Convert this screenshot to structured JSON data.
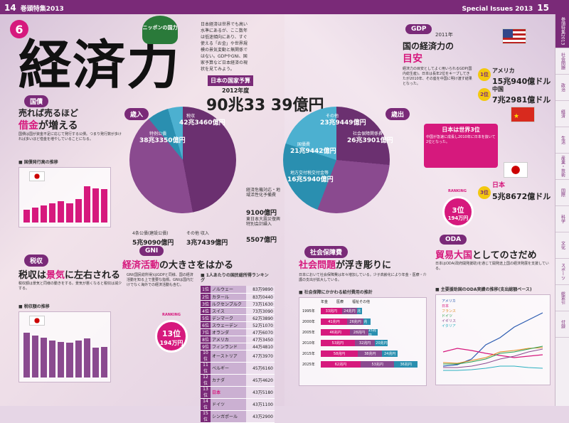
{
  "header": {
    "page_left": "14",
    "title_left": "巻頭特集2013",
    "title_right": "Special Issues 2013",
    "page_right": "15"
  },
  "title": {
    "number": "6",
    "main": "経済力",
    "tag": "ニッポンの国力"
  },
  "intro": "日本経済は世界でも高い水準にあるが、ここ数年は低迷傾向にあり、すぐ使える「お金」や世界規模の景気変動と無関係ではない。GDPやGNI、国家予算など日本経済の現状を見てみよう。",
  "budget": {
    "label": "日本の国家予算",
    "year": "2012年度",
    "total": "90兆33 39億円",
    "revenue": {
      "badge": "歳入",
      "tax_label": "税収",
      "tax": "42兆3460億円",
      "special_label": "特例公債",
      "special": "38兆3350億円",
      "construction_label": "4条公債(建設公債)",
      "construction": "5兆9090億円",
      "other_label": "その他 収入",
      "other": "3兆7439億円",
      "recovery_label": "経済危機対応・地域活性化予備費",
      "recovery": "9100億円",
      "east_label": "東日本大震災復興特別会計繰入",
      "east": "5507億円"
    },
    "expenditure": {
      "badge": "歳出",
      "other_label": "その他",
      "other": "23兆9449億円",
      "social_label": "社会保障関係費",
      "social": "26兆3901億円",
      "debt_label": "国債費",
      "debt": "21兆9442億円",
      "local_label": "地方交付税交付金等",
      "local": "16兆5940億円"
    }
  },
  "bonds": {
    "badge": "国債",
    "headline1": "売れば売るほど",
    "headline2": "借金",
    "headline3": "が増える",
    "chart_title": "■ 国債発行高の推移",
    "body": "国債は国が資金不足に応じて発行する公債。つまり発行数が多ければ多いほど借金を増やしていることになる。"
  },
  "tax": {
    "badge": "税収",
    "headline1": "税収は",
    "headline2": "景気",
    "headline3": "に左右される",
    "chart_title": "■ 税収額の推移",
    "body": "税収額は景気と同様の動きをする。景気が悪くなると税収は減少する。"
  },
  "gni": {
    "badge": "GNI",
    "headline1": "経済活動",
    "headline2": "の大きさをはかる",
    "body": "GNI(国民総所得)はGDPと同様、国の経済活動を知る上で重要な指標。GNIは国内だけでなく海外での経済活動も含む。",
    "rank_label": "RANKING",
    "rank": "13位",
    "value": "194万円",
    "table_title": "■ 1人あたりの国民総所得ランキング",
    "ranking": [
      [
        "1位",
        "ノルウェー",
        "83万9890"
      ],
      [
        "2位",
        "カタール",
        "83万0440"
      ],
      [
        "3位",
        "ルクセンブルク",
        "73万1630"
      ],
      [
        "4位",
        "スイス",
        "73万3090"
      ],
      [
        "5位",
        "デンマーク",
        "62万3890"
      ],
      [
        "6位",
        "スウェーデン",
        "52万1070"
      ],
      [
        "7位",
        "オランダ",
        "47万6070"
      ],
      [
        "8位",
        "アメリカ",
        "47万3450"
      ],
      [
        "9位",
        "フィンランド",
        "44万4810"
      ],
      [
        "10位",
        "オーストリア",
        "47万3970"
      ],
      [
        "11位",
        "ベルギー",
        "45万6160"
      ],
      [
        "12位",
        "カナダ",
        "45万4620"
      ],
      [
        "13位",
        "日本",
        "43万5180"
      ],
      [
        "14位",
        "ドイツ",
        "43万1100"
      ],
      [
        "15位",
        "シンガポール",
        "43万2900"
      ]
    ]
  },
  "social": {
    "badge": "社会保障費",
    "headline1": "社会問題",
    "headline2": "が浮き彫りに",
    "body": "日本において社会保障費は年々増加している。少子高齢化により年金・医療・介護の支出が拡大している。",
    "chart_title": "■ 社会保障にかかわる給付費用の推計",
    "legend": [
      "年金",
      "医療",
      "福祉その他"
    ],
    "rows": [
      [
        "1995年",
        "33兆円",
        "24兆円",
        "8兆円"
      ],
      [
        "2000年",
        "41兆円",
        "26兆円",
        "11兆円"
      ],
      [
        "2005年",
        "46兆円",
        "28兆円",
        "15兆円"
      ],
      [
        "2010年",
        "53兆円",
        "32兆円",
        "20兆円"
      ],
      [
        "2015年",
        "58兆円",
        "38兆円",
        "24兆円"
      ],
      [
        "2025年",
        "62兆円",
        "53兆円",
        "36兆円"
      ]
    ]
  },
  "gdp": {
    "badge": "GDP",
    "year": "2011年",
    "headline1": "国の経済力の",
    "headline2": "目安",
    "body": "経済力の目安としてよく用いられるGDP(国内総生産)。日本は長年2位をキープしてきたが2010年、その座を中国に明け渡す結果となった。",
    "rank1": "1位",
    "rank1_country": "アメリカ",
    "rank1_value": "15兆940億ドル",
    "rank2": "2位",
    "rank2_country": "中国",
    "rank2_value": "7兆2981億ドル",
    "rank3": "3位",
    "rank3_country": "日本",
    "rank3_value": "5兆8672億ドル",
    "callout_title": "日本は世界3位",
    "callout_body": "中国が急速に成長し2010年に日本を抜いて2位となった。",
    "ranking_label": "RANKING",
    "rank_small": "3位",
    "rank_value": "194万円"
  },
  "oda": {
    "badge": "ODA",
    "headline1": "貿易大国",
    "headline2": "としてのさだめ",
    "body": "日本はODA(政府開発援助)を通じて開発途上国の経済発展を支援している。",
    "chart_title": "■ 主要援助国のODA実績の推移(支出総額ベース)",
    "legend": [
      "アメリカ",
      "日本",
      "フランス",
      "ドイツ",
      "イギリス",
      "イタリア"
    ]
  },
  "sidebar": [
    "巻頭特集2013",
    "社会問題",
    "政治",
    "経済",
    "生活",
    "産業・技術",
    "国際",
    "科学",
    "文化",
    "スポーツ",
    "総索引",
    "付録"
  ],
  "colors": {
    "purple": "#7a2a78",
    "pink": "#d6197d"
  }
}
